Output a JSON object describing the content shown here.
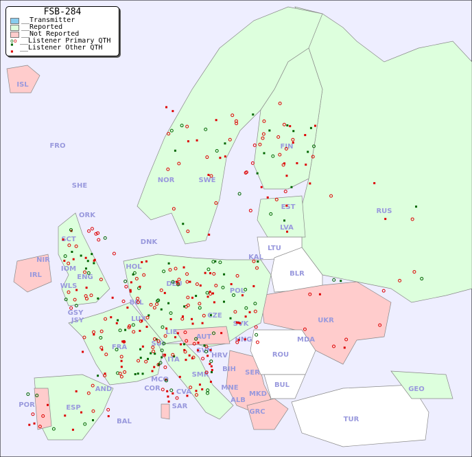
{
  "legend": {
    "title": "FSB-284",
    "items": [
      {
        "label": "__Transmitter",
        "color": "#88ccee"
      },
      {
        "label": "__Reported",
        "color": "#ddffdd"
      },
      {
        "label": "__Not Reported",
        "color": "#ffcccc"
      },
      {
        "label": "__Listener Primary QTH",
        "marker": "ring",
        "colors": [
          "#006600",
          "#dd0000"
        ]
      },
      {
        "label": "__Listener Other QTH",
        "marker": "square",
        "colors": [
          "#006600",
          "#dd0000"
        ]
      }
    ]
  },
  "colors": {
    "sea": "#eeeeff",
    "reported": "#ddffdd",
    "not_reported": "#ffcccc",
    "no_data": "#ffffff",
    "label": "#9999dd"
  },
  "countries": [
    "ISL",
    "FRO",
    "SHE",
    "ORK",
    "NOR",
    "SWE",
    "FIN",
    "EST",
    "LVA",
    "LTU",
    "KAL",
    "RUS",
    "BLR",
    "POL",
    "DNK",
    "HOL",
    "BEL",
    "DEU",
    "LUX",
    "CZE",
    "SVK",
    "UKR",
    "MDA",
    "HNG",
    "AUT",
    "SUI",
    "LIE",
    "FRA",
    "GSY",
    "JSY",
    "IRL",
    "NIR",
    "IOM",
    "WLS",
    "ENG",
    "SCT",
    "SVN",
    "HRV",
    "BIH",
    "SER",
    "ROU",
    "BUL",
    "MNE",
    "ALB",
    "MKD",
    "GRC",
    "TUR",
    "GEO",
    "ITA",
    "SMR",
    "MCO",
    "COR",
    "CVA",
    "SAR",
    "AND",
    "ESP",
    "POR",
    "BAL"
  ]
}
